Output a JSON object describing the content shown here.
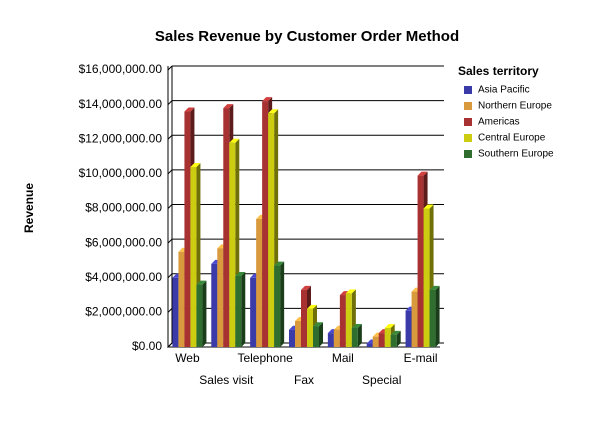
{
  "chart_data": {
    "type": "bar",
    "title": "Sales Revenue by Customer Order Method",
    "y_label": "Revenue",
    "legend_title": "Sales territory",
    "legend": "right",
    "grid": true,
    "categories": [
      "Web",
      "Sales visit",
      "Telephone",
      "Fax",
      "Mail",
      "Special",
      "E-mail"
    ],
    "series": [
      {
        "name": "Asia Pacific",
        "color": "#3a3aa8",
        "values": [
          4000000,
          4800000,
          4000000,
          1000000,
          800000,
          200000,
          2100000
        ]
      },
      {
        "name": "Northern Europe",
        "color": "#d89a3c",
        "values": [
          5500000,
          5700000,
          7400000,
          1500000,
          1000000,
          600000,
          3200000
        ]
      },
      {
        "name": "Americas",
        "color": "#a83232",
        "values": [
          13600000,
          13800000,
          14200000,
          3300000,
          3000000,
          800000,
          9900000
        ]
      },
      {
        "name": "Central Europe",
        "color": "#cccc10",
        "values": [
          10400000,
          11800000,
          13500000,
          2200000,
          3100000,
          1100000,
          8000000
        ]
      },
      {
        "name": "Southern Europe",
        "color": "#2f6e2f",
        "values": [
          3600000,
          4100000,
          4700000,
          1200000,
          1100000,
          700000,
          3300000
        ]
      }
    ],
    "ylim": [
      0,
      16000000
    ],
    "yticks": [
      {
        "value": 0,
        "label": "$0.00"
      },
      {
        "value": 2000000,
        "label": "$2,000,000.00"
      },
      {
        "value": 4000000,
        "label": "$4,000,000.00"
      },
      {
        "value": 6000000,
        "label": "$6,000,000.00"
      },
      {
        "value": 8000000,
        "label": "$8,000,000.00"
      },
      {
        "value": 10000000,
        "label": "$10,000,000.00"
      },
      {
        "value": 12000000,
        "label": "$12,000,000.00"
      },
      {
        "value": 14000000,
        "label": "$14,000,000.00"
      },
      {
        "value": 16000000,
        "label": "$16,000,000.00"
      }
    ]
  }
}
